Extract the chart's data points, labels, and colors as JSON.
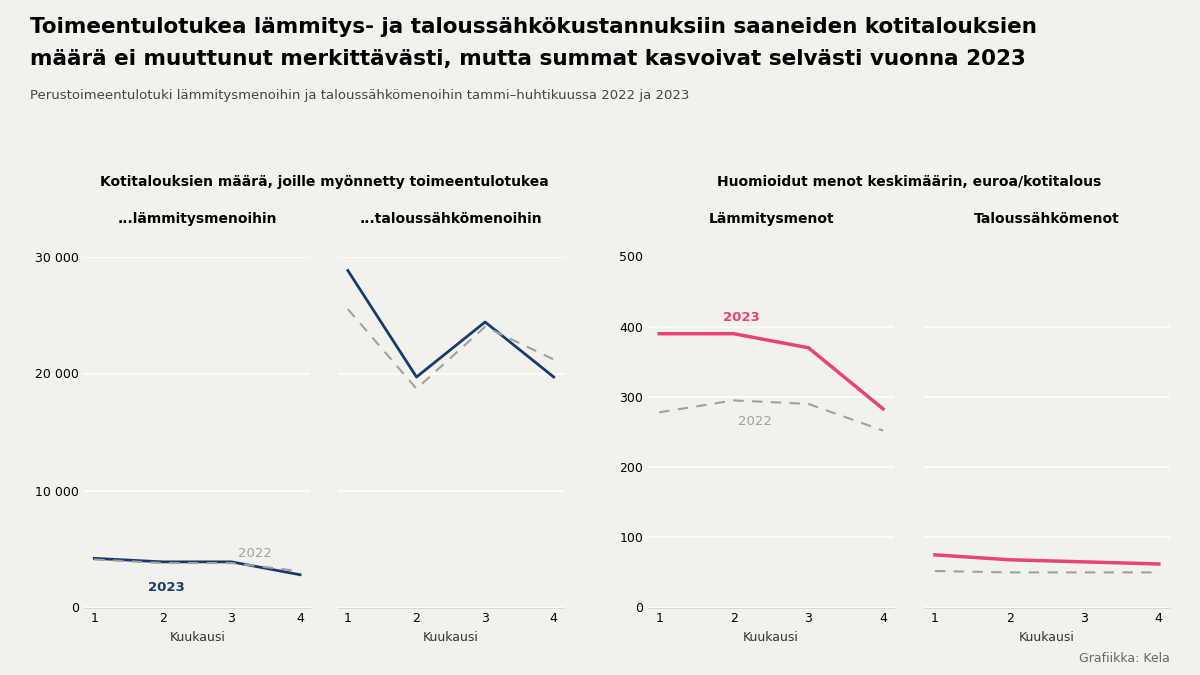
{
  "title_line1": "Toimeentulotukea lämmitys- ja taloussähkökustannuksiin saaneiden kotitalouksien",
  "title_line2": "määrä ei muuttunut merkittävästi, mutta summat kasvoivat selvästi vuonna 2023",
  "subtitle": "Perustoimeentulotuki lämmitysmenoihin ja taloussähkömenoihin tammi–huhtikuussa 2022 ja 2023",
  "group1_title": "Kotitalouksien määrä, joille myönnetty toimeentulotukea",
  "group2_title": "Huomioidut menot keskimäärin, euroa/kotitalous",
  "sub1a_title": "...lämmitysmenoihin",
  "sub1b_title": "...taloussähkömenoihin",
  "sub2a_title": "Lämmitysmenot",
  "sub2b_title": "Taloussähkömenot",
  "xlabel": "Kuukausi",
  "months": [
    1,
    2,
    3,
    4
  ],
  "lamm_maara_2023": [
    4200,
    3900,
    3900,
    2800
  ],
  "lamm_maara_2022": [
    4100,
    3800,
    3800,
    3100
  ],
  "sahko_maara_2023": [
    28800,
    19700,
    24400,
    19700
  ],
  "sahko_maara_2022": [
    25500,
    18700,
    24000,
    21200
  ],
  "lamm_euro_2023": [
    390,
    390,
    370,
    283
  ],
  "lamm_euro_2022": [
    278,
    295,
    290,
    252
  ],
  "sahko_euro_2023": [
    75,
    68,
    65,
    62
  ],
  "sahko_euro_2022": [
    52,
    50,
    50,
    50
  ],
  "color_2023_left": "#1a3a6b",
  "color_2022_left": "#a0a0a0",
  "color_2023_right": "#e8417b",
  "color_2022_right": "#a0a0a0",
  "ylim1": [
    0,
    30000
  ],
  "ylim2": [
    0,
    500
  ],
  "yticks1": [
    0,
    10000,
    20000,
    30000
  ],
  "yticks2": [
    0,
    100,
    200,
    300,
    400,
    500
  ],
  "footer": "Grafiikka: Kela",
  "bg_color": "#f2f2ed"
}
